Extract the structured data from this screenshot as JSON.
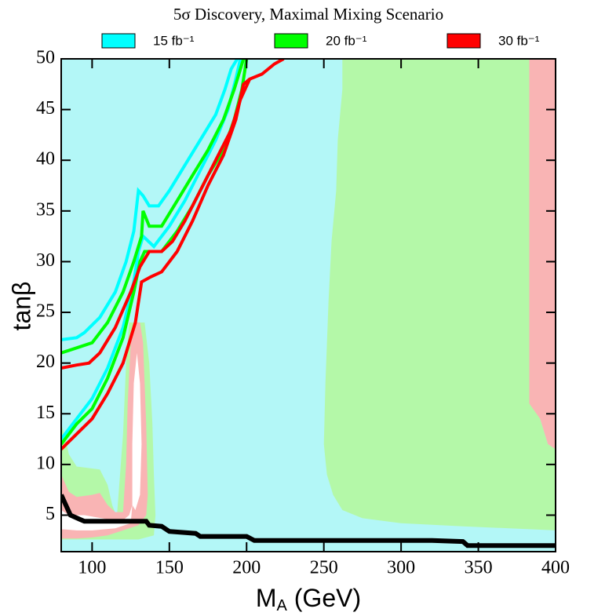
{
  "chart_data": {
    "type": "contour",
    "title": "5σ Discovery, Maximal Mixing Scenario",
    "x_label": [
      "M",
      "A",
      " (GeV)"
    ],
    "y_label": "tanβ",
    "xlim": [
      80,
      400
    ],
    "ylim": [
      1.4,
      50
    ],
    "xticks": [
      100,
      150,
      200,
      250,
      300,
      350,
      400
    ],
    "yticks": [
      5,
      10,
      15,
      20,
      25,
      30,
      35,
      40,
      45,
      50
    ],
    "series": [
      {
        "name": "15 fb⁻¹",
        "color": "#00ffff",
        "fill": "#b3f7f7",
        "regions": [
          {
            "x": [
              80,
              400,
              400,
              80
            ],
            "y": [
              1.4,
              1.4,
              50,
              50
            ]
          }
        ],
        "holes": [
          {
            "x": [
              126,
              128,
              131,
              132,
              131,
              129,
              127,
              126
            ],
            "y": [
              6,
              5.5,
              7,
              12,
              18,
              21,
              18,
              12
            ]
          },
          {
            "x": [
              80,
              85,
              95,
              110,
              120,
              124,
              126,
              125,
              115,
              100,
              90,
              82,
              80
            ],
            "y": [
              5.5,
              5,
              5,
              4.6,
              4.5,
              5,
              6,
              4.2,
              3.7,
              3.5,
              3.5,
              3.6,
              3.6
            ]
          }
        ],
        "lines": [
          {
            "x": [
              80,
              90,
              95,
              105,
              115,
              122,
              127,
              130,
              133,
              137,
              143,
              150,
              160,
              170,
              180,
              186,
              190,
              194
            ],
            "y": [
              22.3,
              22.5,
              23,
              24.5,
              27,
              30,
              33,
              37,
              36.5,
              35.5,
              35.5,
              37,
              39.5,
              42,
              44.5,
              47,
              49,
              50
            ]
          },
          {
            "x": [
              80,
              90,
              100,
              110,
              120,
              127,
              130,
              133,
              140,
              150,
              160,
              170,
              180,
              188,
              193,
              196
            ],
            "y": [
              12.5,
              14.5,
              16.5,
              19.5,
              23.5,
              28,
              31,
              32.5,
              31.5,
              33.5,
              36,
              39,
              42,
              45,
              48,
              50
            ]
          }
        ]
      },
      {
        "name": "20 fb⁻¹",
        "color": "#00ff00",
        "fill": "#b4f8a8",
        "regions": [
          {
            "x": [
              262,
              262,
              259,
              258,
              255,
              253,
              251,
              250,
              252,
              256,
              262,
              275,
              300,
              340,
              400,
              400,
              395,
              390,
              385,
              385
            ],
            "y": [
              50,
              47,
              42,
              37,
              32,
              26,
              18,
              12,
              9,
              7,
              5.5,
              4.7,
              4.2,
              3.9,
              3.5,
              11.5,
              12,
              14.5,
              16,
              50
            ]
          },
          {
            "x": [
              80,
              82,
              85,
              90,
              100,
              105,
              110,
              113,
              116,
              120,
              122,
              124,
              134,
              137,
              139,
              140,
              141,
              140,
              130,
              120,
              110,
              95,
              80
            ],
            "y": [
              14,
              13,
              11,
              9.8,
              9.6,
              9.5,
              8,
              6,
              4.8,
              13,
              20,
              24,
              24,
              20,
              14,
              9,
              5,
              3,
              2.6,
              2.6,
              2.6,
              2.6,
              2.6
            ]
          }
        ],
        "lines": [
          {
            "x": [
              80,
              90,
              100,
              110,
              120,
              127,
              132,
              133,
              137,
              145,
              155,
              165,
              175,
              185,
              192,
              198
            ],
            "y": [
              21,
              21.5,
              22,
              24,
              27,
              30,
              32.5,
              35,
              33.5,
              33.5,
              36,
              38.5,
              41,
              44,
              47,
              50
            ]
          },
          {
            "x": [
              80,
              90,
              100,
              110,
              120,
              127,
              131,
              134,
              145,
              155,
              165,
              175,
              185,
              192,
              197,
              200
            ],
            "y": [
              12,
              14,
              15.5,
              18.5,
              22.5,
              27,
              30,
              31,
              31,
              33,
              35.5,
              38.5,
              41,
              44,
              47,
              50
            ]
          }
        ]
      },
      {
        "name": "30 fb⁻¹",
        "color": "#ff0000",
        "fill": "#f9b4b4",
        "regions": [
          {
            "x": [
              383,
              383,
              390,
              395,
              400,
              400
            ],
            "y": [
              50,
              16,
              14.5,
              12,
              11.5,
              50
            ]
          },
          {
            "x": [
              80,
              85,
              90,
              100,
              105,
              110,
              115,
              120,
              122,
              123,
              125,
              128,
              131,
              133,
              135,
              136,
              135,
              130,
              120,
              110,
              100,
              90,
              80
            ],
            "y": [
              9,
              7.3,
              6.8,
              7,
              7.2,
              6,
              5.3,
              5.3,
              10,
              16,
              22,
              24,
              24,
              22,
              14,
              7,
              5,
              4,
              3.5,
              3,
              2.8,
              2.7,
              2.7
            ]
          }
        ],
        "lines": [
          {
            "x": [
              80,
              90,
              98,
              105,
              115,
              125,
              131,
              137,
              145,
              152,
              160,
              170,
              180,
              190,
              196,
              202,
              210,
              218,
              224
            ],
            "y": [
              19.5,
              19.8,
              20,
              21,
              23.5,
              27,
              29.5,
              31,
              31,
              32,
              34,
              37,
              40,
              43,
              46,
              48,
              48.5,
              49.5,
              50
            ]
          },
          {
            "x": [
              80,
              90,
              100,
              110,
              120,
              128,
              132,
              138,
              145,
              155,
              165,
              175,
              185,
              193,
              198,
              202
            ],
            "y": [
              11.5,
              13,
              14.5,
              17,
              20,
              24,
              28,
              28.5,
              29,
              31,
              34,
              37.5,
              40.5,
              44,
              47.5,
              48
            ]
          }
        ]
      }
    ],
    "limit_line": {
      "color": "#000000",
      "x": [
        80,
        83,
        86,
        92,
        95,
        135,
        137,
        145,
        150,
        167,
        170,
        200,
        205,
        320,
        340,
        343,
        400
      ],
      "y": [
        7,
        6,
        5,
        4.6,
        4.4,
        4.4,
        4,
        3.9,
        3.4,
        3.2,
        2.9,
        2.9,
        2.5,
        2.5,
        2.4,
        2,
        2
      ]
    }
  }
}
